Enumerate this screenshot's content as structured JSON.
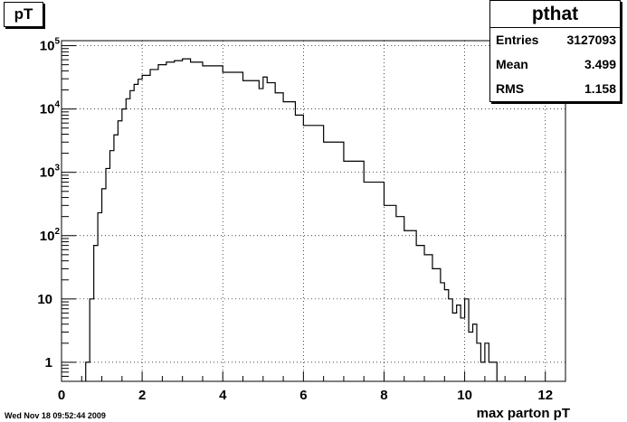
{
  "title": "pT",
  "stats": {
    "name": "pthat",
    "rows": [
      {
        "label": "Entries",
        "value": "3127093"
      },
      {
        "label": "Mean",
        "value": "3.499"
      },
      {
        "label": "RMS",
        "value": "1.158"
      }
    ]
  },
  "footer_date": "Wed Nov 18 09:52:44 2009",
  "chart_data": {
    "type": "line",
    "style": "step-histogram",
    "title": "pT",
    "xlabel": "max parton pT",
    "ylabel": "",
    "xlim": [
      0,
      12.5
    ],
    "ylim": [
      0.5,
      120000
    ],
    "yscale": "log",
    "grid": true,
    "legend": "none",
    "x_ticks": [
      0,
      2,
      4,
      6,
      8,
      10,
      12
    ],
    "y_ticks": [
      {
        "value": 1,
        "label": "1"
      },
      {
        "value": 10,
        "label": "10"
      },
      {
        "value": 100,
        "label": "10",
        "exp": "2"
      },
      {
        "value": 1000,
        "label": "10",
        "exp": "3"
      },
      {
        "value": 10000,
        "label": "10",
        "exp": "4"
      },
      {
        "value": 100000,
        "label": "10",
        "exp": "5"
      }
    ],
    "series": [
      {
        "x": [
          0.6,
          0.7,
          0.8,
          0.9,
          1.0,
          1.1,
          1.2,
          1.3,
          1.4,
          1.5,
          1.6,
          1.7,
          1.8,
          1.9,
          2.0,
          2.2,
          2.4,
          2.6,
          2.8,
          3.0,
          3.2,
          3.5,
          4.0,
          4.5,
          4.9,
          5.0,
          5.1,
          5.3,
          5.5,
          5.8,
          6.0,
          6.5,
          7.0,
          7.5,
          8.0,
          8.3,
          8.5,
          8.8,
          9.0,
          9.2,
          9.4,
          9.5,
          9.6,
          9.7,
          9.8,
          9.9,
          10.0,
          10.1,
          10.2,
          10.3,
          10.4,
          10.5,
          10.6,
          10.7
        ],
        "y": [
          1,
          10,
          70,
          230,
          550,
          1150,
          2200,
          3900,
          6500,
          10000,
          14500,
          19500,
          24500,
          29500,
          34000,
          42000,
          50000,
          55000,
          58000,
          62000,
          55000,
          48000,
          38000,
          28000,
          21000,
          32000,
          26000,
          18000,
          13000,
          8000,
          5500,
          3000,
          1500,
          700,
          300,
          200,
          120,
          70,
          50,
          30,
          18,
          14,
          10,
          6,
          8,
          5,
          10,
          3,
          4,
          2,
          1,
          2,
          1,
          1
        ]
      }
    ]
  }
}
